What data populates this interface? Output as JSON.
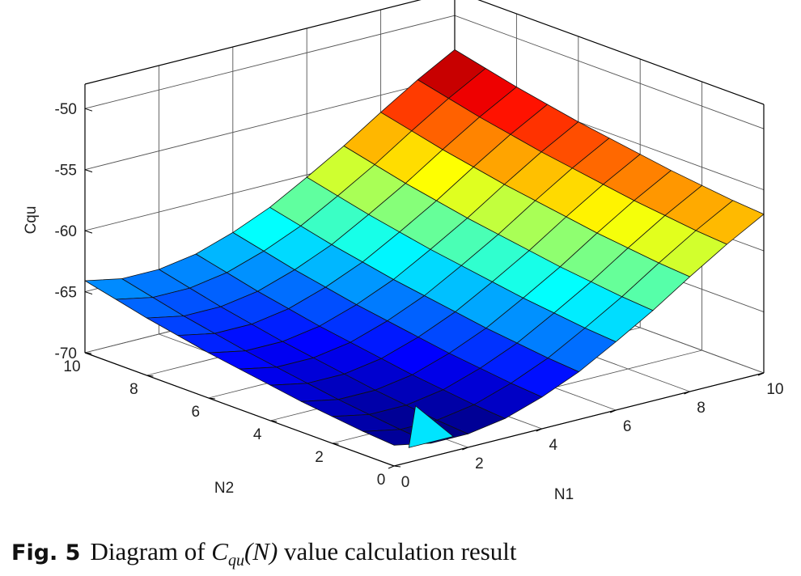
{
  "caption": {
    "label": "Fig. 5",
    "symbol": "C",
    "subscript": "qu",
    "argument": "(N)",
    "text": "Diagram of",
    "suffix": "value calculation result"
  },
  "chart_data": {
    "type": "surface",
    "xlabel": "N1",
    "ylabel": "N2",
    "zlabel": "Cqu",
    "xlim": [
      0,
      10
    ],
    "ylim": [
      0,
      10
    ],
    "zlim": [
      -70,
      -48
    ],
    "x_ticks": [
      "0",
      "2",
      "4",
      "6",
      "8",
      "10"
    ],
    "y_ticks": [
      "0",
      "2",
      "4",
      "6",
      "8",
      "10"
    ],
    "z_ticks": [
      "-70",
      "-65",
      "-60",
      "-55",
      "-50"
    ],
    "grid": true,
    "colormap": "jet",
    "x": [
      0,
      1,
      2,
      3,
      4,
      5,
      6,
      7,
      8,
      9,
      10
    ],
    "y": [
      0,
      1,
      2,
      3,
      4,
      5,
      6,
      7,
      8,
      9,
      10
    ],
    "z": [
      [
        -68.3,
        -68.9,
        -68.9,
        -68.4,
        -67.4,
        -66.1,
        -64.4,
        -62.6,
        -60.6,
        -58.7,
        -57.0
      ],
      [
        -68.1,
        -68.7,
        -68.7,
        -68.2,
        -67.2,
        -65.9,
        -64.2,
        -62.4,
        -60.4,
        -58.5,
        -56.8
      ],
      [
        -67.8,
        -68.4,
        -68.4,
        -67.9,
        -66.9,
        -65.6,
        -63.9,
        -62.1,
        -60.1,
        -58.2,
        -56.5
      ],
      [
        -67.5,
        -68.1,
        -68.1,
        -67.6,
        -66.6,
        -65.3,
        -63.6,
        -61.8,
        -59.8,
        -57.9,
        -56.2
      ],
      [
        -67.1,
        -67.7,
        -67.7,
        -67.2,
        -66.2,
        -64.9,
        -63.2,
        -61.4,
        -59.4,
        -57.5,
        -55.8
      ],
      [
        -66.7,
        -67.3,
        -67.3,
        -66.8,
        -65.8,
        -64.5,
        -62.8,
        -61.0,
        -59.0,
        -57.1,
        -55.4
      ],
      [
        -66.3,
        -66.9,
        -66.9,
        -66.4,
        -65.4,
        -64.1,
        -62.4,
        -60.6,
        -58.6,
        -56.7,
        -55.0
      ],
      [
        -65.8,
        -66.4,
        -66.4,
        -65.9,
        -64.9,
        -63.6,
        -61.9,
        -60.1,
        -58.1,
        -56.2,
        -54.5
      ],
      [
        -65.3,
        -65.9,
        -65.9,
        -65.4,
        -64.4,
        -63.1,
        -61.4,
        -59.6,
        -57.6,
        -55.7,
        -54.0
      ],
      [
        -64.7,
        -65.3,
        -65.3,
        -64.8,
        -63.8,
        -62.5,
        -60.8,
        -59.0,
        -57.0,
        -55.1,
        -53.4
      ],
      [
        -64.1,
        -64.7,
        -64.7,
        -64.2,
        -63.2,
        -61.9,
        -60.2,
        -58.4,
        -56.4,
        -54.5,
        -52.8
      ]
    ],
    "z_note_anomaly": {
      "x": 1,
      "y": 0,
      "z": -66.3
    }
  }
}
